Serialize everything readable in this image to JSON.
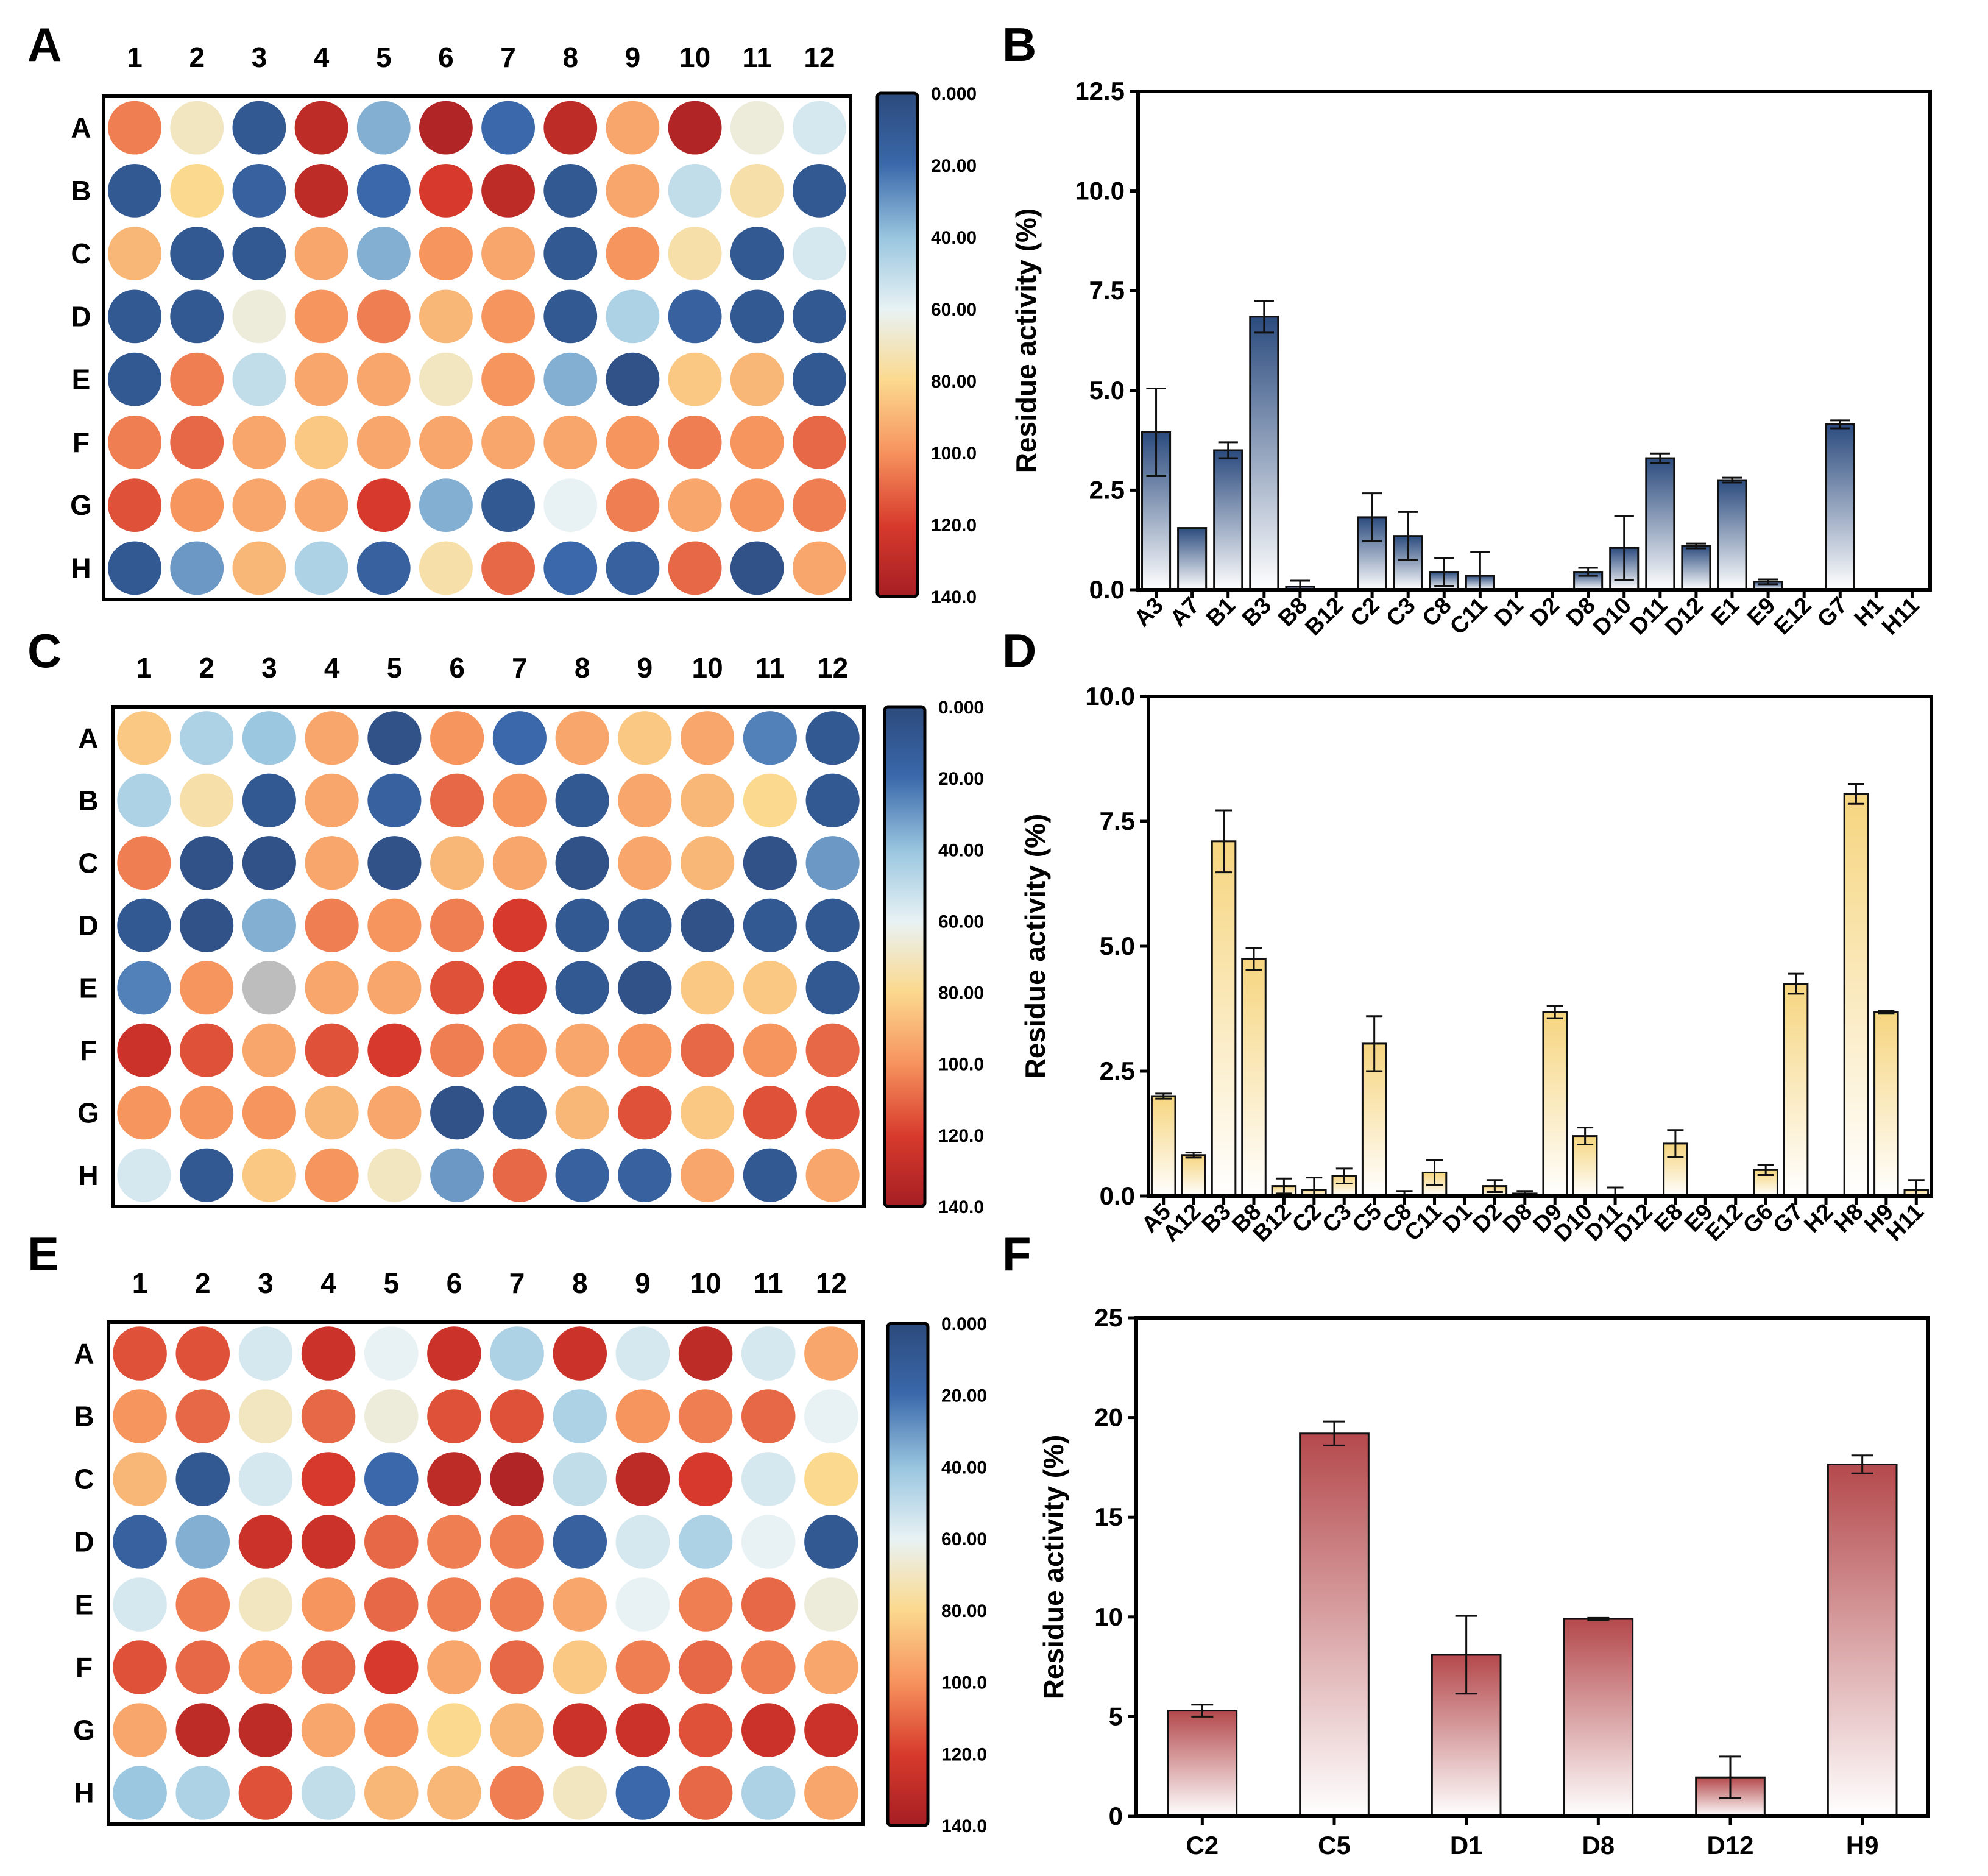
{
  "panels": [
    {
      "letter": "A",
      "type": "plate",
      "cmap": "blue"
    },
    {
      "letter": "B",
      "type": "bar"
    },
    {
      "letter": "C",
      "type": "plate",
      "cmap": "blue"
    },
    {
      "letter": "D",
      "type": "bar"
    },
    {
      "letter": "E",
      "type": "plate",
      "cmap": "blue"
    },
    {
      "letter": "F",
      "type": "bar"
    }
  ],
  "colors": {
    "stops": [
      "#2c4a7c",
      "#3a68aa",
      "#9bc7e0",
      "#e8f2f4",
      "#fbd98e",
      "#f7955f",
      "#d73a2c",
      "#a51e24"
    ],
    "bar_navy": "#2b4b7e",
    "bar_yellow": "#f6d57f",
    "bar_red": "#b4494c",
    "grey_well": "#bdbdbd"
  },
  "chart_data": [
    {
      "panel": "A",
      "type": "heatmap",
      "rows": [
        "A",
        "B",
        "C",
        "D",
        "E",
        "F",
        "G",
        "H"
      ],
      "columns": [
        "1",
        "2",
        "3",
        "4",
        "5",
        "6",
        "7",
        "8",
        "9",
        "10",
        "11",
        "12"
      ],
      "values": [
        [
          105,
          70,
          10,
          130,
          35,
          135,
          20,
          130,
          95,
          135,
          65,
          55
        ],
        [
          10,
          80,
          15,
          130,
          20,
          120,
          130,
          10,
          95,
          50,
          75,
          10
        ],
        [
          90,
          10,
          10,
          95,
          35,
          100,
          95,
          10,
          100,
          75,
          10,
          55
        ],
        [
          10,
          10,
          65,
          100,
          105,
          90,
          100,
          10,
          45,
          15,
          10,
          10
        ],
        [
          10,
          105,
          50,
          95,
          95,
          70,
          100,
          35,
          5,
          85,
          90,
          10
        ],
        [
          105,
          110,
          95,
          85,
          95,
          95,
          95,
          95,
          100,
          105,
          100,
          110
        ],
        [
          115,
          100,
          95,
          95,
          120,
          35,
          10,
          60,
          105,
          95,
          100,
          105
        ],
        [
          10,
          30,
          90,
          45,
          15,
          75,
          110,
          20,
          15,
          110,
          5,
          95
        ]
      ],
      "colorbar": {
        "ticks": [
          "0.000",
          "20.00",
          "40.00",
          "60.00",
          "80.00",
          "100.0",
          "120.0",
          "140.0"
        ],
        "range": [
          0,
          140
        ]
      }
    },
    {
      "panel": "B",
      "type": "bar",
      "categories": [
        "A3",
        "A7",
        "B1",
        "B3",
        "B8",
        "B12",
        "C2",
        "C3",
        "C8",
        "C11",
        "D1",
        "D2",
        "D8",
        "D10",
        "D11",
        "D12",
        "E1",
        "E9",
        "E12",
        "G7",
        "H1",
        "H11"
      ],
      "values": [
        3.95,
        1.55,
        3.5,
        6.85,
        0.08,
        0,
        1.82,
        1.35,
        0.45,
        0.35,
        0,
        0,
        0.45,
        1.05,
        3.3,
        1.1,
        2.75,
        0.2,
        0,
        4.15,
        0,
        0
      ],
      "errors": [
        1.1,
        0,
        0.2,
        0.4,
        0.15,
        0,
        0.6,
        0.6,
        0.35,
        0.6,
        0,
        0,
        0.1,
        0.8,
        0.12,
        0.06,
        0.06,
        0.06,
        0,
        0.1,
        0,
        0
      ],
      "ylabel": "Residue activity (%)",
      "ylim": [
        0,
        12.5
      ],
      "yticks": [
        "0.0",
        "2.5",
        "5.0",
        "7.5",
        "10.0",
        "12.5"
      ],
      "color": "navy"
    },
    {
      "panel": "C",
      "type": "heatmap",
      "rows": [
        "A",
        "B",
        "C",
        "D",
        "E",
        "F",
        "G",
        "H"
      ],
      "columns": [
        "1",
        "2",
        "3",
        "4",
        "5",
        "6",
        "7",
        "8",
        "9",
        "10",
        "11",
        "12"
      ],
      "values": [
        [
          85,
          45,
          40,
          95,
          5,
          100,
          20,
          95,
          85,
          95,
          25,
          10
        ],
        [
          45,
          75,
          10,
          95,
          15,
          110,
          100,
          10,
          95,
          90,
          80,
          10
        ],
        [
          105,
          5,
          5,
          95,
          5,
          90,
          95,
          5,
          95,
          90,
          5,
          30
        ],
        [
          10,
          5,
          35,
          105,
          100,
          105,
          120,
          10,
          10,
          5,
          10,
          10
        ],
        [
          25,
          100,
          null,
          95,
          95,
          115,
          120,
          10,
          5,
          85,
          85,
          10
        ],
        [
          125,
          115,
          95,
          115,
          120,
          105,
          100,
          95,
          100,
          110,
          100,
          110
        ],
        [
          100,
          100,
          100,
          90,
          95,
          5,
          10,
          90,
          115,
          85,
          115,
          115
        ],
        [
          55,
          10,
          85,
          100,
          70,
          30,
          110,
          15,
          15,
          95,
          10,
          95
        ]
      ],
      "colorbar": {
        "ticks": [
          "0.000",
          "20.00",
          "40.00",
          "60.00",
          "80.00",
          "100.0",
          "120.0",
          "140.0"
        ],
        "range": [
          0,
          140
        ]
      }
    },
    {
      "panel": "D",
      "type": "bar",
      "categories": [
        "A5",
        "A12",
        "B3",
        "B8",
        "B12",
        "C2",
        "C3",
        "C5",
        "C8",
        "C11",
        "D1",
        "D2",
        "D8",
        "D9",
        "D10",
        "D11",
        "D12",
        "E8",
        "E9",
        "E12",
        "G6",
        "G7",
        "H2",
        "H8",
        "H9",
        "H11"
      ],
      "values": [
        2.0,
        0.82,
        7.1,
        4.75,
        0.2,
        0.12,
        0.4,
        3.05,
        0,
        0.47,
        0,
        0.2,
        0.05,
        3.68,
        1.2,
        0.02,
        0,
        1.05,
        0,
        0,
        0.52,
        4.25,
        0,
        8.05,
        3.68,
        0.12
      ],
      "errors": [
        0.05,
        0.05,
        0.62,
        0.22,
        0.15,
        0.25,
        0.15,
        0.55,
        0.1,
        0.25,
        0,
        0.12,
        0.05,
        0.12,
        0.17,
        0.15,
        0,
        0.27,
        0,
        0,
        0.1,
        0.2,
        0,
        0.2,
        0.03,
        0.2
      ],
      "ylabel": "Residue activity (%)",
      "ylim": [
        0,
        10.0
      ],
      "yticks": [
        "0.0",
        "2.5",
        "5.0",
        "7.5",
        "10.0"
      ],
      "color": "yellow"
    },
    {
      "panel": "E",
      "type": "heatmap",
      "rows": [
        "A",
        "B",
        "C",
        "D",
        "E",
        "F",
        "G",
        "H"
      ],
      "columns": [
        "1",
        "2",
        "3",
        "4",
        "5",
        "6",
        "7",
        "8",
        "9",
        "10",
        "11",
        "12"
      ],
      "values": [
        [
          115,
          115,
          55,
          125,
          60,
          125,
          45,
          125,
          55,
          130,
          55,
          95
        ],
        [
          100,
          110,
          70,
          110,
          65,
          115,
          115,
          45,
          100,
          105,
          110,
          60
        ],
        [
          90,
          10,
          55,
          120,
          20,
          130,
          135,
          50,
          130,
          120,
          55,
          80
        ],
        [
          15,
          35,
          125,
          125,
          110,
          105,
          105,
          15,
          55,
          45,
          60,
          10
        ],
        [
          55,
          105,
          70,
          100,
          110,
          105,
          105,
          95,
          60,
          105,
          110,
          65
        ],
        [
          115,
          110,
          100,
          110,
          120,
          95,
          110,
          85,
          105,
          110,
          105,
          95
        ],
        [
          95,
          130,
          130,
          95,
          100,
          80,
          90,
          125,
          125,
          115,
          125,
          125
        ],
        [
          40,
          45,
          115,
          50,
          90,
          90,
          105,
          70,
          20,
          110,
          45,
          95
        ]
      ],
      "colorbar": {
        "ticks": [
          "0.000",
          "20.00",
          "40.00",
          "60.00",
          "80.00",
          "100.0",
          "120.0",
          "140.0"
        ],
        "range": [
          0,
          140
        ]
      }
    },
    {
      "panel": "F",
      "type": "bar",
      "categories": [
        "C2",
        "C5",
        "D1",
        "D8",
        "D12",
        "H9"
      ],
      "values": [
        5.3,
        19.2,
        8.1,
        9.9,
        1.95,
        17.65
      ],
      "errors": [
        0.3,
        0.6,
        1.95,
        0.05,
        1.05,
        0.45
      ],
      "ylabel": "Residue activity (%)",
      "ylim": [
        0,
        25
      ],
      "yticks": [
        "0",
        "5",
        "10",
        "15",
        "20",
        "25"
      ],
      "color": "red"
    }
  ]
}
